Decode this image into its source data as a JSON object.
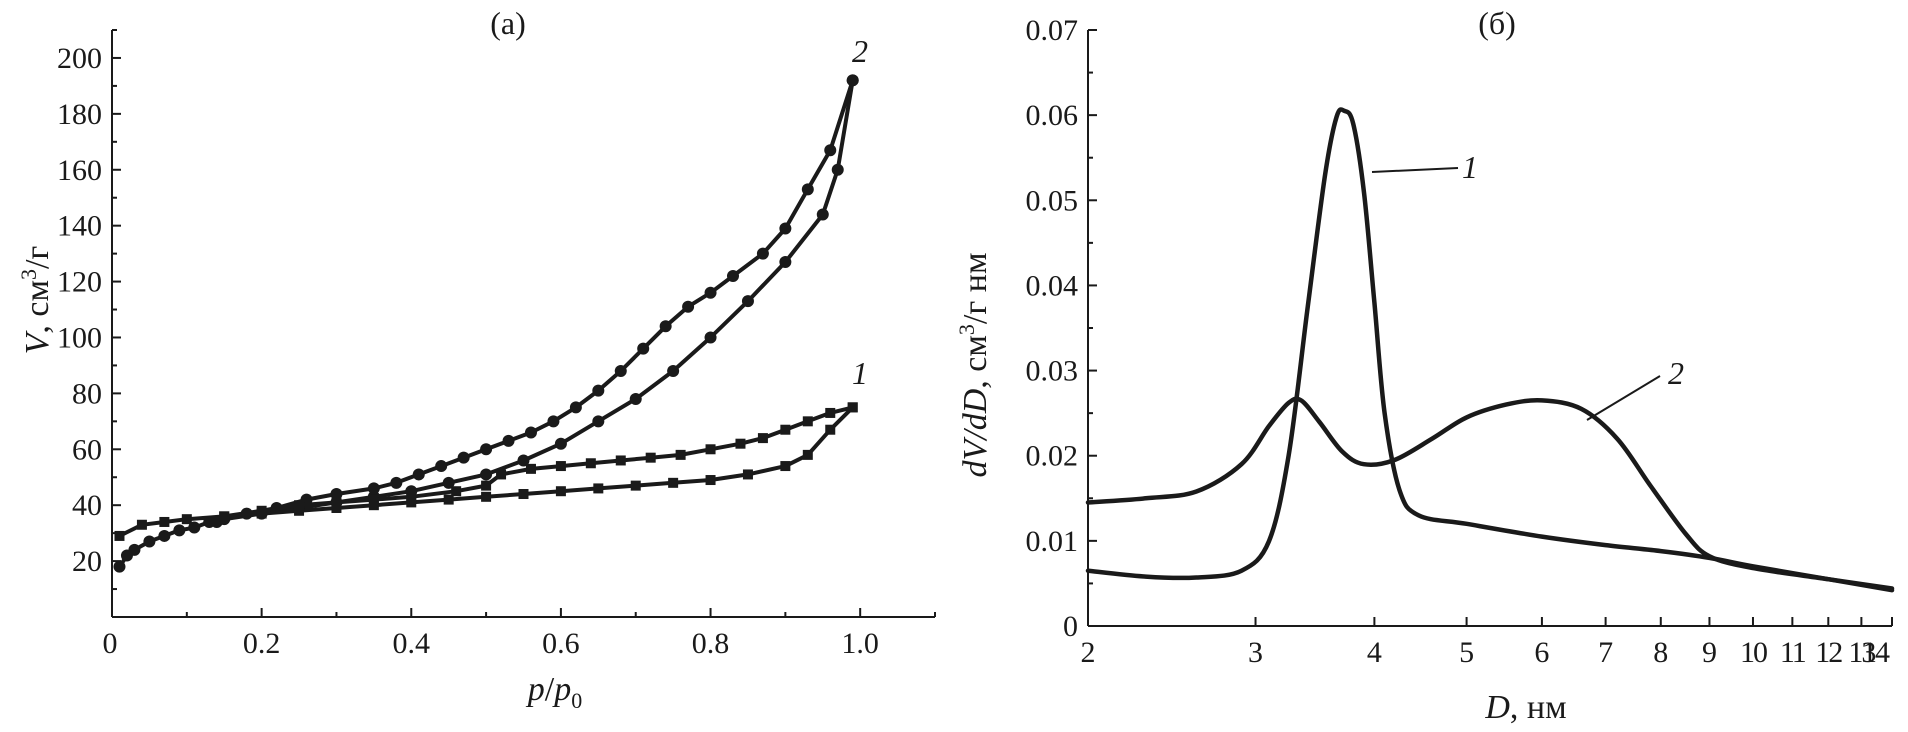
{
  "chart_data": [
    {
      "type": "line",
      "title": "(а)",
      "xlabel_parts": [
        "p",
        "/",
        "p",
        "0"
      ],
      "ylabel_parts": [
        "V",
        ", см",
        "3",
        "/г"
      ],
      "xlim": [
        0,
        1.1
      ],
      "ylim": [
        0,
        210
      ],
      "xticks": [
        0,
        0.2,
        0.4,
        0.6,
        0.8,
        1.0
      ],
      "xtick_labels": [
        "0",
        "0.2",
        "0.4",
        "0.6",
        "0.8",
        "1.0"
      ],
      "yticks": [
        20,
        40,
        60,
        80,
        100,
        120,
        140,
        160,
        180,
        200
      ],
      "ytick_labels": [
        "20",
        "40",
        "60",
        "80",
        "100",
        "120",
        "140",
        "160",
        "180",
        "200"
      ],
      "series": [
        {
          "name": "2",
          "marker": "circle",
          "adsorption": [
            [
              0.01,
              18
            ],
            [
              0.02,
              22
            ],
            [
              0.03,
              24
            ],
            [
              0.05,
              27
            ],
            [
              0.07,
              29
            ],
            [
              0.09,
              31
            ],
            [
              0.11,
              32
            ],
            [
              0.13,
              34
            ],
            [
              0.15,
              35
            ],
            [
              0.2,
              37
            ],
            [
              0.25,
              39
            ],
            [
              0.3,
              41
            ],
            [
              0.35,
              43
            ],
            [
              0.4,
              45
            ],
            [
              0.45,
              48
            ],
            [
              0.5,
              51
            ],
            [
              0.55,
              56
            ],
            [
              0.6,
              62
            ],
            [
              0.65,
              70
            ],
            [
              0.7,
              78
            ],
            [
              0.75,
              88
            ],
            [
              0.8,
              100
            ],
            [
              0.85,
              113
            ],
            [
              0.9,
              127
            ],
            [
              0.95,
              144
            ],
            [
              0.97,
              160
            ],
            [
              0.99,
              192
            ]
          ],
          "desorption": [
            [
              0.99,
              192
            ],
            [
              0.96,
              167
            ],
            [
              0.93,
              153
            ],
            [
              0.9,
              139
            ],
            [
              0.87,
              130
            ],
            [
              0.83,
              122
            ],
            [
              0.8,
              116
            ],
            [
              0.77,
              111
            ],
            [
              0.74,
              104
            ],
            [
              0.71,
              96
            ],
            [
              0.68,
              88
            ],
            [
              0.65,
              81
            ],
            [
              0.62,
              75
            ],
            [
              0.59,
              70
            ],
            [
              0.56,
              66
            ],
            [
              0.53,
              63
            ],
            [
              0.5,
              60
            ],
            [
              0.47,
              57
            ],
            [
              0.44,
              54
            ],
            [
              0.41,
              51
            ],
            [
              0.38,
              48
            ],
            [
              0.35,
              46
            ],
            [
              0.3,
              44
            ],
            [
              0.26,
              42
            ],
            [
              0.22,
              39
            ],
            [
              0.18,
              37
            ],
            [
              0.14,
              34
            ]
          ]
        },
        {
          "name": "1",
          "marker": "square",
          "adsorption": [
            [
              0.01,
              29
            ],
            [
              0.04,
              33
            ],
            [
              0.07,
              34
            ],
            [
              0.1,
              35
            ],
            [
              0.15,
              36
            ],
            [
              0.2,
              37
            ],
            [
              0.25,
              38
            ],
            [
              0.3,
              39
            ],
            [
              0.35,
              40
            ],
            [
              0.4,
              41
            ],
            [
              0.45,
              42
            ],
            [
              0.5,
              43
            ],
            [
              0.55,
              44
            ],
            [
              0.6,
              45
            ],
            [
              0.65,
              46
            ],
            [
              0.7,
              47
            ],
            [
              0.75,
              48
            ],
            [
              0.8,
              49
            ],
            [
              0.85,
              51
            ],
            [
              0.9,
              54
            ],
            [
              0.93,
              58
            ],
            [
              0.96,
              67
            ],
            [
              0.99,
              75
            ]
          ],
          "desorption": [
            [
              0.99,
              75
            ],
            [
              0.96,
              73
            ],
            [
              0.93,
              70
            ],
            [
              0.9,
              67
            ],
            [
              0.87,
              64
            ],
            [
              0.84,
              62
            ],
            [
              0.8,
              60
            ],
            [
              0.76,
              58
            ],
            [
              0.72,
              57
            ],
            [
              0.68,
              56
            ],
            [
              0.64,
              55
            ],
            [
              0.6,
              54
            ],
            [
              0.56,
              53
            ],
            [
              0.52,
              51
            ],
            [
              0.5,
              47
            ],
            [
              0.46,
              45
            ],
            [
              0.4,
              43
            ],
            [
              0.35,
              42
            ],
            [
              0.3,
              41
            ],
            [
              0.25,
              40
            ],
            [
              0.2,
              38
            ],
            [
              0.15,
              36
            ]
          ]
        }
      ]
    },
    {
      "type": "line",
      "title": "(б)",
      "xscale": "log",
      "xlabel_parts": [
        "D",
        ", нм"
      ],
      "ylabel_parts": [
        "dV/dD",
        ", см",
        "3",
        "/г нм"
      ],
      "xlim": [
        2,
        14
      ],
      "ylim": [
        0,
        0.07
      ],
      "xticks": [
        2,
        3,
        4,
        5,
        6,
        7,
        8,
        9,
        10,
        11,
        12,
        13,
        14
      ],
      "xtick_labels": [
        "2",
        "3",
        "4",
        "5",
        "6",
        "7",
        "8",
        "9",
        "10",
        "11",
        "12",
        "13",
        "14"
      ],
      "yticks": [
        0,
        0.01,
        0.02,
        0.03,
        0.04,
        0.05,
        0.06,
        0.07
      ],
      "ytick_labels": [
        "0",
        "0.01",
        "0.02",
        "0.03",
        "0.04",
        "0.05",
        "0.06",
        "0.07"
      ],
      "series": [
        {
          "name": "1",
          "points": [
            [
              2.0,
              0.0065
            ],
            [
              2.3,
              0.0058
            ],
            [
              2.6,
              0.0057
            ],
            [
              2.9,
              0.0065
            ],
            [
              3.1,
              0.01
            ],
            [
              3.25,
              0.02
            ],
            [
              3.4,
              0.037
            ],
            [
              3.55,
              0.053
            ],
            [
              3.65,
              0.0598
            ],
            [
              3.72,
              0.0605
            ],
            [
              3.8,
              0.059
            ],
            [
              3.9,
              0.051
            ],
            [
              4.0,
              0.038
            ],
            [
              4.1,
              0.025
            ],
            [
              4.25,
              0.016
            ],
            [
              4.45,
              0.013
            ],
            [
              5.0,
              0.012
            ],
            [
              6.0,
              0.0105
            ],
            [
              7.0,
              0.0095
            ],
            [
              8.0,
              0.0088
            ],
            [
              9.0,
              0.008
            ],
            [
              10.0,
              0.007
            ],
            [
              12.0,
              0.0055
            ],
            [
              14.0,
              0.0042
            ]
          ]
        },
        {
          "name": "2",
          "points": [
            [
              2.0,
              0.0145
            ],
            [
              2.3,
              0.015
            ],
            [
              2.6,
              0.0158
            ],
            [
              2.9,
              0.019
            ],
            [
              3.1,
              0.0235
            ],
            [
              3.25,
              0.0262
            ],
            [
              3.35,
              0.0265
            ],
            [
              3.5,
              0.024
            ],
            [
              3.7,
              0.0205
            ],
            [
              3.9,
              0.019
            ],
            [
              4.2,
              0.0195
            ],
            [
              4.6,
              0.022
            ],
            [
              5.0,
              0.0245
            ],
            [
              5.5,
              0.026
            ],
            [
              6.0,
              0.0265
            ],
            [
              6.6,
              0.0255
            ],
            [
              7.2,
              0.022
            ],
            [
              7.8,
              0.0165
            ],
            [
              8.5,
              0.0108
            ],
            [
              9.0,
              0.0082
            ],
            [
              10.0,
              0.0068
            ],
            [
              12.0,
              0.0055
            ],
            [
              14.0,
              0.0044
            ]
          ]
        }
      ]
    }
  ]
}
